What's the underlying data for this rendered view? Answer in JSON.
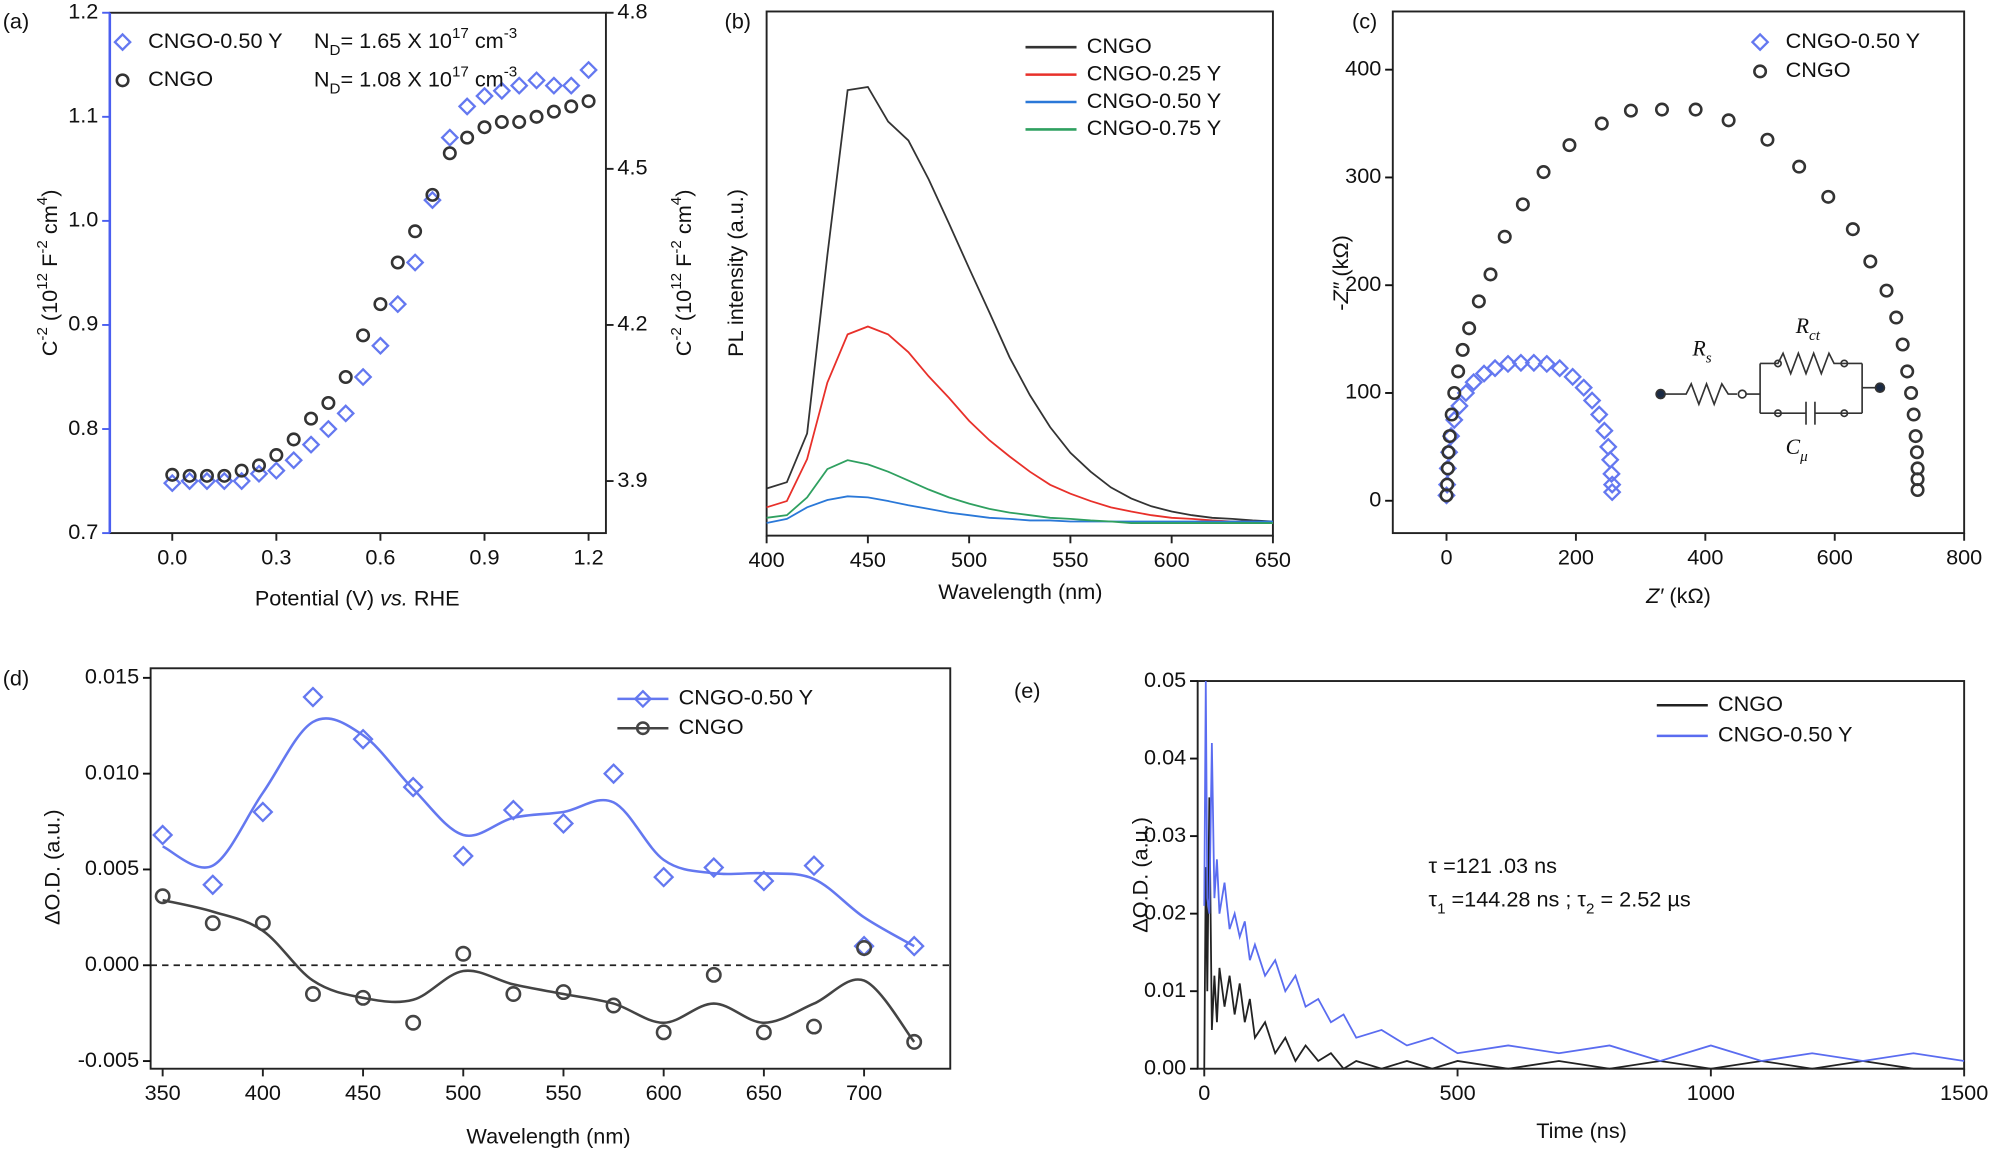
{
  "chart_data": [
    {
      "type": "scatter",
      "panel_label": "(a)",
      "xlabel": [
        {
          "base": "Potential (V) "
        },
        {
          "it": "vs."
        },
        {
          "base": " RHE"
        }
      ],
      "ylabel": [
        {
          "base": "C"
        },
        {
          "sup": "-2"
        },
        {
          "base": " (10"
        },
        {
          "sup": "12"
        },
        {
          "base": " F"
        },
        {
          "sup": "-2"
        },
        {
          "base": " cm"
        },
        {
          "sup": "4"
        },
        {
          "base": ")"
        }
      ],
      "y2label": [
        {
          "base": "C"
        },
        {
          "sup": "-2"
        },
        {
          "base": " (10"
        },
        {
          "sup": "12"
        },
        {
          "base": " F"
        },
        {
          "sup": "-2"
        },
        {
          "base": " cm"
        },
        {
          "sup": "4"
        },
        {
          "base": ")"
        }
      ],
      "yaxis_color": "#4a5ef0",
      "xlim": [
        -0.18,
        1.25
      ],
      "xticks": [
        {
          "value": 0,
          "label": "0.0"
        },
        0.3,
        0.6,
        0.9,
        1.2
      ],
      "ylim": [
        0.7,
        1.2
      ],
      "yticks": [
        0.7,
        0.8,
        0.9,
        {
          "value": 1,
          "label": "1.0"
        },
        1.1,
        1.2
      ],
      "y2lim": [
        3.8,
        4.8
      ],
      "y2ticks": [
        3.9,
        4.2,
        4.5,
        4.8
      ],
      "x": [
        0,
        0.05,
        0.1,
        0.15,
        0.2,
        0.25,
        0.3,
        0.35,
        0.4,
        0.45,
        0.5,
        0.55,
        0.6,
        0.65,
        0.7,
        0.75,
        0.8,
        0.85,
        0.9,
        0.95,
        1.0,
        1.05,
        1.1,
        1.15,
        1.2
      ],
      "series": [
        {
          "name": "CNGO-0.50 Y",
          "color": "#6478f0",
          "marker": "diamond",
          "axis": "y",
          "values": [
            0.748,
            0.75,
            0.75,
            0.75,
            0.75,
            0.757,
            0.76,
            0.77,
            0.785,
            0.8,
            0.815,
            0.85,
            0.88,
            0.92,
            0.96,
            1.02,
            1.08,
            1.11,
            1.12,
            1.125,
            1.13,
            1.135,
            1.13,
            1.13,
            1.145
          ]
        },
        {
          "name": "CNGO",
          "color": "#333333",
          "marker": "circle",
          "axis": "y2",
          "values": [
            3.912,
            3.91,
            3.91,
            3.91,
            3.92,
            3.93,
            3.95,
            3.98,
            4.02,
            4.05,
            4.1,
            4.18,
            4.24,
            4.32,
            4.38,
            4.45,
            4.53,
            4.56,
            4.58,
            4.59,
            4.59,
            4.6,
            4.61,
            4.62,
            4.63
          ]
        }
      ],
      "annotations": [
        {
          "color": "#111111",
          "text": [
            {
              "base": "N"
            },
            {
              "sub": "D"
            },
            {
              "base": "= 1.65 X 10"
            },
            {
              "sup": "17"
            },
            {
              "base": " cm"
            },
            {
              "sup": "-3"
            }
          ]
        },
        {
          "color": "#111111",
          "text": [
            {
              "base": "N"
            },
            {
              "sub": "D"
            },
            {
              "base": "= 1.08 X 10"
            },
            {
              "sup": "17"
            },
            {
              "base": " cm"
            },
            {
              "sup": "-3"
            }
          ]
        }
      ]
    },
    {
      "type": "line",
      "panel_label": "(b)",
      "xlabel": "Wavelength (nm)",
      "ylabel": "PL intensity (a.u.)",
      "xlim": [
        400,
        650
      ],
      "xticks": [
        400,
        450,
        500,
        550,
        600,
        650
      ],
      "ylim": [
        0,
        100
      ],
      "x": [
        400,
        410,
        420,
        430,
        440,
        450,
        460,
        470,
        480,
        490,
        500,
        510,
        520,
        530,
        540,
        550,
        560,
        570,
        580,
        590,
        600,
        610,
        620,
        630,
        640,
        650
      ],
      "series": [
        {
          "name": "CNGO",
          "color": "#333333",
          "values": [
            9.0,
            10.2,
            19.5,
            53.5,
            85,
            85.6,
            79,
            75.4,
            68,
            59.6,
            51,
            42.6,
            34,
            26.8,
            20.7,
            15.8,
            12.2,
            9.2,
            7.1,
            5.6,
            4.6,
            3.9,
            3.4,
            3.2,
            2.9,
            2.7
          ]
        },
        {
          "name": "CNGO-0.25 Y",
          "color": "#e8302a",
          "values": [
            5.4,
            6.6,
            14.6,
            29.2,
            38.4,
            39.9,
            38.4,
            35,
            30.4,
            26.3,
            21.9,
            18.2,
            15.1,
            12.2,
            9.7,
            8,
            6.6,
            5.4,
            4.6,
            3.9,
            3.4,
            3.2,
            2.9,
            2.7,
            2.7,
            2.4
          ]
        },
        {
          "name": "CNGO-0.50 Y",
          "color": "#2a78d8",
          "values": [
            2.4,
            3.2,
            5.4,
            6.8,
            7.5,
            7.3,
            6.6,
            5.8,
            5.1,
            4.4,
            3.9,
            3.4,
            3.2,
            2.9,
            2.9,
            2.7,
            2.7,
            2.7,
            2.7,
            2.7,
            2.7,
            2.7,
            2.7,
            2.7,
            2.7,
            2.7
          ]
        },
        {
          "name": "CNGO-0.75 Y",
          "color": "#2fa060",
          "values": [
            3.4,
            3.9,
            7.3,
            12.7,
            14.4,
            13.6,
            12.2,
            10.5,
            8.8,
            7.3,
            6.1,
            5.1,
            4.4,
            3.9,
            3.4,
            3.2,
            2.9,
            2.7,
            2.4,
            2.4,
            2.4,
            2.4,
            2.4,
            2.4,
            2.4,
            2.4
          ]
        }
      ]
    },
    {
      "type": "scatter",
      "panel_label": "(c)",
      "xlabel": [
        {
          "it": "Z′"
        },
        {
          "base": " (kΩ)"
        }
      ],
      "ylabel": [
        {
          "base": "-"
        },
        {
          "it": "Z″"
        },
        {
          "base": " (kΩ)"
        }
      ],
      "xlim": [
        -83,
        800
      ],
      "xticks": [
        0,
        200,
        400,
        600,
        800
      ],
      "ylim": [
        -30,
        454
      ],
      "yticks": [
        0,
        100,
        200,
        300,
        400
      ],
      "series": [
        {
          "name": "CNGO-0.50 Y",
          "color": "#6478f0",
          "marker": "diamond",
          "x": [
            0,
            1,
            2,
            4,
            7,
            12,
            20,
            30,
            42,
            58,
            75,
            95,
            115,
            135,
            155,
            175,
            195,
            212,
            225,
            236,
            244,
            250,
            253,
            255,
            256,
            256
          ],
          "values": [
            5,
            15,
            30,
            45,
            60,
            75,
            88,
            100,
            110,
            118,
            123,
            127,
            128,
            128,
            127,
            123,
            115,
            105,
            93,
            80,
            65,
            50,
            38,
            25,
            15,
            8
          ]
        },
        {
          "name": "CNGO",
          "color": "#333333",
          "marker": "circle",
          "x": [
            0,
            1,
            2,
            3,
            5,
            8,
            12,
            18,
            25,
            35,
            50,
            68,
            90,
            118,
            150,
            190,
            240,
            285,
            333,
            385,
            436,
            496,
            545,
            590,
            628,
            655,
            680,
            695,
            705,
            712,
            718,
            722,
            725,
            727,
            728,
            728,
            728
          ],
          "values": [
            5,
            15,
            30,
            45,
            60,
            80,
            100,
            120,
            140,
            160,
            185,
            210,
            245,
            275,
            305,
            330,
            350,
            362,
            363,
            363,
            353,
            335,
            310,
            282,
            252,
            222,
            195,
            170,
            145,
            120,
            100,
            80,
            60,
            45,
            30,
            20,
            10
          ]
        }
      ],
      "circuit_labels": [
        [
          {
            "it": "R"
          },
          {
            "sub": "s"
          }
        ],
        [
          {
            "it": "R"
          },
          {
            "sub": "ct"
          }
        ],
        [
          {
            "it": "C"
          },
          {
            "sub": "μ"
          }
        ]
      ]
    },
    {
      "type": "line",
      "panel_label": "(d)",
      "xlabel": "Wavelength (nm)",
      "ylabel": "ΔO.D. (a.u.)",
      "xlim": [
        344,
        743
      ],
      "xticks": [
        350,
        400,
        450,
        500,
        550,
        600,
        650,
        700
      ],
      "ylim": [
        -0.0054,
        0.0155
      ],
      "yticks": [
        -0.005,
        {
          "value": 0,
          "label": "0.000"
        },
        0.005,
        {
          "value": 0.01,
          "label": "0.010"
        },
        0.015
      ],
      "reference_line": 0,
      "x": [
        350,
        375,
        400,
        425,
        450,
        475,
        500,
        525,
        550,
        575,
        600,
        625,
        650,
        675,
        700,
        725
      ],
      "series": [
        {
          "name": "CNGO-0.50 Y",
          "color": "#6478f0",
          "marker": "diamond",
          "values": [
            0.0068,
            0.0042,
            0.008,
            0.014,
            0.0118,
            0.0093,
            0.0057,
            0.0081,
            0.0074,
            0.01,
            0.0046,
            0.0051,
            0.0044,
            0.0052,
            0.001,
            0.001
          ],
          "fit": [
            0.0062,
            0.0052,
            0.009,
            0.0127,
            0.012,
            0.0092,
            0.0068,
            0.0077,
            0.008,
            0.0085,
            0.0055,
            0.0048,
            0.0048,
            0.0045,
            0.0025,
            0.001
          ]
        },
        {
          "name": "CNGO",
          "color": "#444444",
          "marker": "circle",
          "values": [
            0.0036,
            0.0022,
            0.0022,
            -0.0015,
            -0.0017,
            -0.003,
            0.0006,
            -0.0015,
            -0.0014,
            -0.0021,
            -0.0035,
            -0.0005,
            -0.0035,
            -0.0032,
            0.0009,
            -0.004
          ],
          "fit": [
            0.0034,
            0.0028,
            0.0018,
            -0.0008,
            -0.0017,
            -0.0018,
            -0.0003,
            -0.001,
            -0.0015,
            -0.002,
            -0.003,
            -0.002,
            -0.003,
            -0.002,
            -0.0008,
            -0.004
          ]
        }
      ]
    },
    {
      "type": "line",
      "panel_label": "(e)",
      "xlabel": "Time (ns)",
      "ylabel": "ΔO.D. (a.u.)",
      "xlim": [
        -13,
        1500
      ],
      "xticks": [
        0,
        500,
        1000,
        1500
      ],
      "ylim": [
        0,
        0.05
      ],
      "yticks": [
        {
          "value": 0,
          "label": "0.00"
        },
        0.01,
        0.02,
        0.03,
        0.04,
        0.05
      ],
      "x": [
        0,
        3,
        6,
        10,
        15,
        20,
        25,
        30,
        40,
        50,
        60,
        70,
        80,
        90,
        100,
        120,
        140,
        160,
        180,
        200,
        225,
        250,
        275,
        300,
        350,
        400,
        450,
        500,
        600,
        700,
        800,
        900,
        1000,
        1100,
        1200,
        1300,
        1400,
        1500
      ],
      "series": [
        {
          "name": "CNGO",
          "color": "#222222",
          "values": [
            0,
            0.026,
            0.01,
            0.035,
            0.005,
            0.012,
            0.006,
            0.013,
            0.008,
            0.012,
            0.007,
            0.011,
            0.006,
            0.009,
            0.004,
            0.006,
            0.002,
            0.004,
            0.001,
            0.003,
            0.001,
            0.002,
            0,
            0.001,
            0,
            0.001,
            0,
            0.001,
            0,
            0.001,
            0,
            0.001,
            0,
            0.001,
            0,
            0.001,
            0,
            0
          ]
        },
        {
          "name": "CNGO-0.50 Y",
          "color": "#5a6cf0",
          "values": [
            0.021,
            0.05,
            0.022,
            0.02,
            0.042,
            0.022,
            0.027,
            0.02,
            0.024,
            0.018,
            0.02,
            0.017,
            0.019,
            0.014,
            0.016,
            0.012,
            0.014,
            0.01,
            0.012,
            0.008,
            0.009,
            0.006,
            0.007,
            0.004,
            0.005,
            0.003,
            0.004,
            0.002,
            0.003,
            0.002,
            0.003,
            0.001,
            0.003,
            0.001,
            0.002,
            0.001,
            0.002,
            0.001
          ]
        }
      ],
      "annotations": [
        {
          "color": "#555555",
          "text": "τ =121 .03 ns"
        },
        {
          "color": "#3d56f0",
          "text": [
            {
              "base": "τ"
            },
            {
              "sub": "1"
            },
            {
              "base": " =144.28 ns ; τ"
            },
            {
              "sub": "2"
            },
            {
              "base": " = 2.52 µs"
            }
          ]
        }
      ]
    }
  ]
}
